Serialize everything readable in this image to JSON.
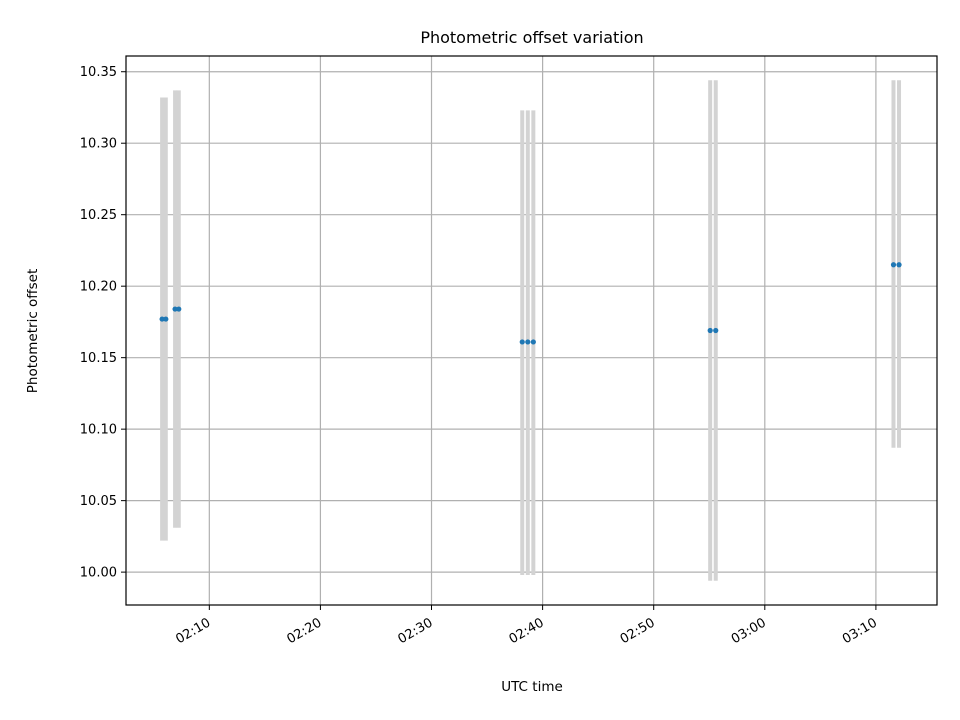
{
  "chart_data": {
    "type": "scatter",
    "title": "Photometric offset variation",
    "xlabel": "UTC time",
    "ylabel": "Photometric offset",
    "xlim": [
      "02:02:30",
      "03:15:30"
    ],
    "ylim": [
      9.977,
      10.361
    ],
    "x_ticks": [
      "02:10",
      "02:20",
      "02:30",
      "02:40",
      "02:50",
      "03:00",
      "03:10"
    ],
    "y_ticks": [
      "10.00",
      "10.05",
      "10.10",
      "10.15",
      "10.20",
      "10.25",
      "10.30",
      "10.35"
    ],
    "grid": true,
    "colors": {
      "points": "#1f77b4",
      "errorbars": "#d3d3d3"
    },
    "series": [
      {
        "points": [
          {
            "x": "02:05:45",
            "y": 10.177,
            "yerr_low": 10.022,
            "yerr_high": 10.332
          },
          {
            "x": "02:06:05",
            "y": 10.177,
            "yerr_low": 10.022,
            "yerr_high": 10.332
          },
          {
            "x": "02:06:55",
            "y": 10.184,
            "yerr_low": 10.031,
            "yerr_high": 10.337
          },
          {
            "x": "02:07:15",
            "y": 10.184,
            "yerr_low": 10.031,
            "yerr_high": 10.337
          },
          {
            "x": "02:38:10",
            "y": 10.161,
            "yerr_low": 9.998,
            "yerr_high": 10.323
          },
          {
            "x": "02:38:40",
            "y": 10.161,
            "yerr_low": 9.998,
            "yerr_high": 10.323
          },
          {
            "x": "02:39:10",
            "y": 10.161,
            "yerr_low": 9.998,
            "yerr_high": 10.323
          },
          {
            "x": "02:55:05",
            "y": 10.169,
            "yerr_low": 9.994,
            "yerr_high": 10.344
          },
          {
            "x": "02:55:35",
            "y": 10.169,
            "yerr_low": 9.994,
            "yerr_high": 10.344
          },
          {
            "x": "03:11:35",
            "y": 10.215,
            "yerr_low": 10.087,
            "yerr_high": 10.344
          },
          {
            "x": "03:12:05",
            "y": 10.215,
            "yerr_low": 10.087,
            "yerr_high": 10.344
          }
        ]
      }
    ]
  }
}
